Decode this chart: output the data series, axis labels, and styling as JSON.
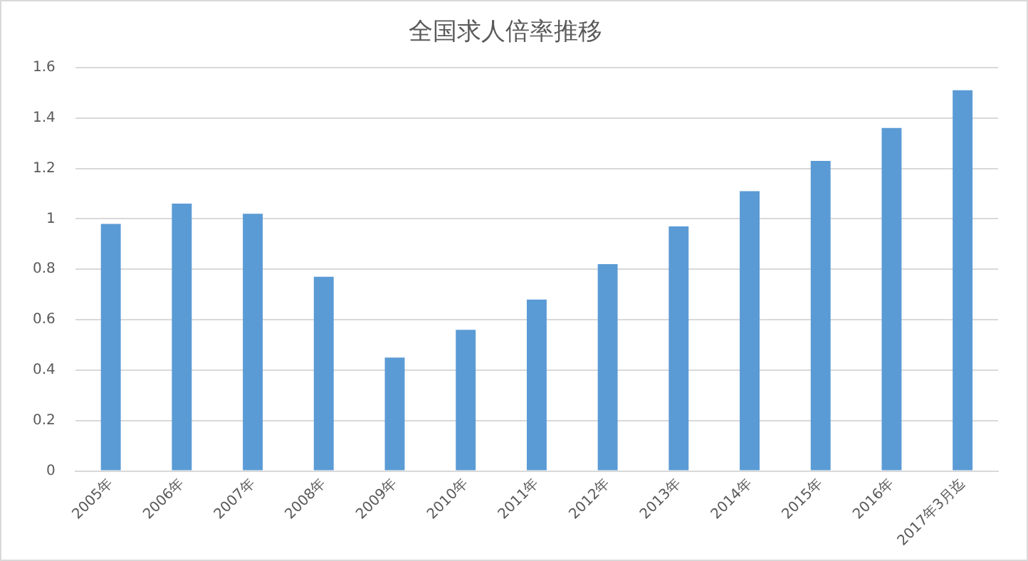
{
  "chart_data": {
    "type": "bar",
    "title": "全国求人倍率推移",
    "categories": [
      "2005年",
      "2006年",
      "2007年",
      "2008年",
      "2009年",
      "2010年",
      "2011年",
      "2012年",
      "2013年",
      "2014年",
      "2015年",
      "2016年",
      "2017年3月迄"
    ],
    "values": [
      0.98,
      1.06,
      1.02,
      0.77,
      0.45,
      0.56,
      0.68,
      0.82,
      0.97,
      1.11,
      1.23,
      1.36,
      1.51
    ],
    "color": "#5b9bd5",
    "ylim": [
      0,
      1.6
    ],
    "yticks": [
      0,
      0.2,
      0.4,
      0.6,
      0.8,
      1,
      1.2,
      1.4,
      1.6
    ],
    "grid": "y",
    "legend": false
  }
}
